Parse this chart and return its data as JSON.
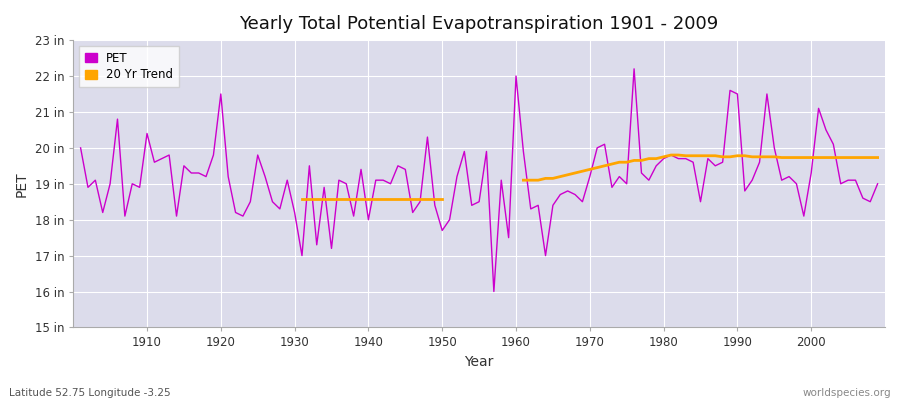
{
  "title": "Yearly Total Potential Evapotranspiration 1901 - 2009",
  "xlabel": "Year",
  "ylabel": "PET",
  "footer_left": "Latitude 52.75 Longitude -3.25",
  "footer_right": "worldspecies.org",
  "pet_color": "#cc00cc",
  "trend_color": "#ffa500",
  "background_color": "#ffffff",
  "plot_background": "#dcdceb",
  "grid_color": "#ffffff",
  "ylim": [
    15,
    23
  ],
  "xlim": [
    1900,
    2010
  ],
  "years": [
    1901,
    1902,
    1903,
    1904,
    1905,
    1906,
    1907,
    1908,
    1909,
    1910,
    1911,
    1912,
    1913,
    1914,
    1915,
    1916,
    1917,
    1918,
    1919,
    1920,
    1921,
    1922,
    1923,
    1924,
    1925,
    1926,
    1927,
    1928,
    1929,
    1930,
    1931,
    1932,
    1933,
    1934,
    1935,
    1936,
    1937,
    1938,
    1939,
    1940,
    1941,
    1942,
    1943,
    1944,
    1945,
    1946,
    1947,
    1948,
    1949,
    1950,
    1951,
    1952,
    1953,
    1954,
    1955,
    1956,
    1957,
    1958,
    1959,
    1960,
    1961,
    1962,
    1963,
    1964,
    1965,
    1966,
    1967,
    1968,
    1969,
    1970,
    1971,
    1972,
    1973,
    1974,
    1975,
    1976,
    1977,
    1978,
    1979,
    1980,
    1981,
    1982,
    1983,
    1984,
    1985,
    1986,
    1987,
    1988,
    1989,
    1990,
    1991,
    1992,
    1993,
    1994,
    1995,
    1996,
    1997,
    1998,
    1999,
    2000,
    2001,
    2002,
    2003,
    2004,
    2005,
    2006,
    2007,
    2008,
    2009
  ],
  "pet_values": [
    20.0,
    18.9,
    19.1,
    18.2,
    19.0,
    20.8,
    18.1,
    19.0,
    18.9,
    20.4,
    19.6,
    19.7,
    19.8,
    18.1,
    19.5,
    19.3,
    19.3,
    19.2,
    19.8,
    21.5,
    19.2,
    18.2,
    18.1,
    18.5,
    19.8,
    19.2,
    18.5,
    18.3,
    19.1,
    18.2,
    17.0,
    19.5,
    17.3,
    18.9,
    17.2,
    19.1,
    19.0,
    18.1,
    19.4,
    18.0,
    19.1,
    19.1,
    19.0,
    19.5,
    19.4,
    18.2,
    18.5,
    20.3,
    18.4,
    17.7,
    18.0,
    19.2,
    19.9,
    18.4,
    18.5,
    19.9,
    16.0,
    19.1,
    17.5,
    22.0,
    19.9,
    18.3,
    18.4,
    17.0,
    18.4,
    18.7,
    18.8,
    18.7,
    18.5,
    19.2,
    20.0,
    20.1,
    18.9,
    19.2,
    19.0,
    22.2,
    19.3,
    19.1,
    19.5,
    19.7,
    19.8,
    19.7,
    19.7,
    19.6,
    18.5,
    19.7,
    19.5,
    19.6,
    21.6,
    21.5,
    18.8,
    19.1,
    19.6,
    21.5,
    20.0,
    19.1,
    19.2,
    19.0,
    18.1,
    19.3,
    21.1,
    20.5,
    20.1,
    19.0,
    19.1,
    19.1,
    18.6,
    18.5,
    19.0
  ],
  "trend_segment1_years": [
    1931,
    1932,
    1933,
    1934,
    1935,
    1936,
    1937,
    1938,
    1939,
    1940,
    1941,
    1942,
    1943,
    1944,
    1945,
    1946,
    1947,
    1948,
    1949,
    1950
  ],
  "trend_segment1_values": [
    18.57,
    18.57,
    18.57,
    18.57,
    18.57,
    18.57,
    18.57,
    18.57,
    18.57,
    18.57,
    18.57,
    18.57,
    18.57,
    18.57,
    18.57,
    18.57,
    18.57,
    18.57,
    18.57,
    18.57
  ],
  "trend_segment2_years": [
    1961,
    1962,
    1963,
    1964,
    1965,
    1966,
    1967,
    1968,
    1969,
    1970,
    1971,
    1972,
    1973,
    1974,
    1975,
    1976,
    1977,
    1978,
    1979,
    1980,
    1981,
    1982,
    1983,
    1984,
    1985,
    1986,
    1987,
    1988,
    1989,
    1990,
    1991,
    1992,
    1993,
    1994,
    1995,
    1996,
    1997,
    1998,
    1999,
    2000,
    2001,
    2002,
    2003,
    2004,
    2005,
    2006,
    2007,
    2008,
    2009
  ],
  "trend_segment2_values": [
    19.1,
    19.1,
    19.1,
    19.15,
    19.15,
    19.2,
    19.25,
    19.3,
    19.35,
    19.4,
    19.45,
    19.5,
    19.55,
    19.6,
    19.6,
    19.65,
    19.65,
    19.7,
    19.7,
    19.75,
    19.8,
    19.8,
    19.78,
    19.78,
    19.78,
    19.78,
    19.78,
    19.75,
    19.75,
    19.78,
    19.78,
    19.75,
    19.75,
    19.75,
    19.75,
    19.73,
    19.73,
    19.73,
    19.73,
    19.73,
    19.73,
    19.73,
    19.73,
    19.73,
    19.73,
    19.73,
    19.73,
    19.73,
    19.73
  ]
}
